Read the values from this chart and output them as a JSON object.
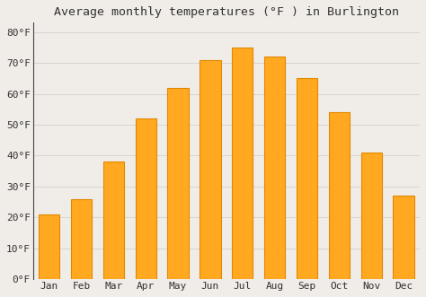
{
  "title": "Average monthly temperatures (°F ) in Burlington",
  "months": [
    "Jan",
    "Feb",
    "Mar",
    "Apr",
    "May",
    "Jun",
    "Jul",
    "Aug",
    "Sep",
    "Oct",
    "Nov",
    "Dec"
  ],
  "values": [
    21,
    26,
    38,
    52,
    62,
    71,
    75,
    72,
    65,
    54,
    41,
    27
  ],
  "bar_color": "#FFA820",
  "bar_edge_color": "#E08800",
  "background_color": "#f0ece8",
  "plot_bg_color": "#f0ece8",
  "grid_color": "#d8d4d0",
  "yticks": [
    0,
    10,
    20,
    30,
    40,
    50,
    60,
    70,
    80
  ],
  "ylim": [
    0,
    83
  ],
  "title_fontsize": 9.5,
  "tick_fontsize": 8,
  "left_spine_color": "#444444"
}
